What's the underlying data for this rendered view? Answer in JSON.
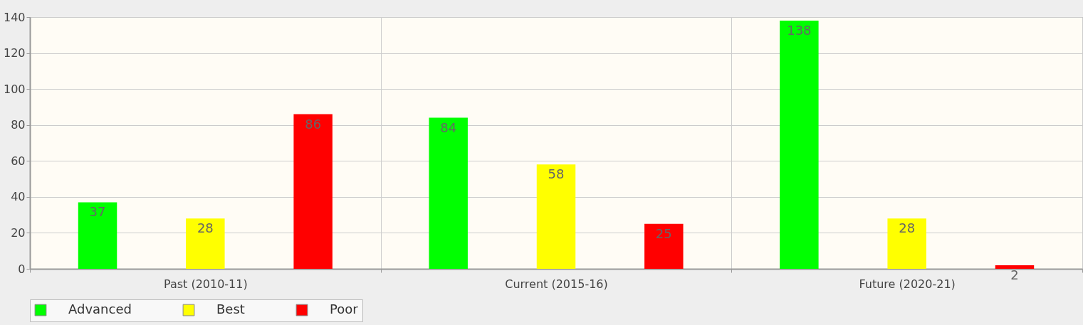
{
  "chart_data": {
    "type": "bar",
    "categories": [
      "Past (2010-11)",
      "Current (2015-16)",
      "Future (2020-21)"
    ],
    "series": [
      {
        "name": "Advanced",
        "color": "#00ff00",
        "values": [
          37,
          84,
          138
        ]
      },
      {
        "name": "Best",
        "color": "#ffff00",
        "values": [
          28,
          58,
          28
        ]
      },
      {
        "name": "Poor",
        "color": "#ff0000",
        "values": [
          86,
          25,
          2
        ]
      }
    ],
    "ylim": [
      0,
      140
    ],
    "yticks": [
      0,
      20,
      40,
      60,
      80,
      100,
      120,
      140
    ],
    "grid": true,
    "legend": "bottom",
    "data_labels": true
  }
}
